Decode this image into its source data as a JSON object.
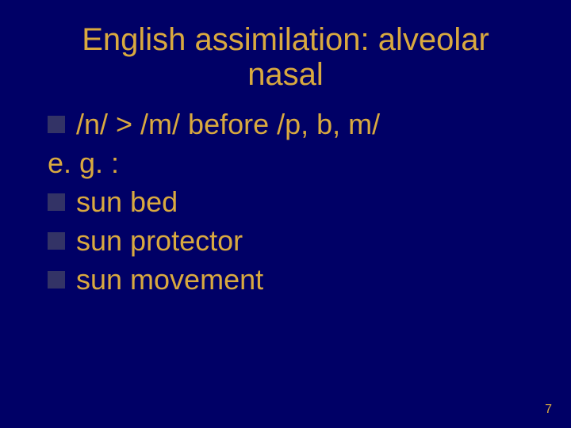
{
  "colors": {
    "background": "#000066",
    "title": "#d9a93f",
    "body_text": "#d9a93f",
    "bullet": "#333366",
    "page_number": "#d9a93f"
  },
  "typography": {
    "title_fontsize": 40,
    "body_fontsize": 36,
    "page_number_fontsize": 16,
    "font_family": "Arial"
  },
  "title": {
    "line1": "English assimilation: alveolar",
    "line2": "nasal"
  },
  "content": {
    "rule": "/n/ > /m/ before /p, b, m/",
    "eg_label": "e. g. :",
    "examples": [
      " sun bed",
      " sun protector",
      " sun movement"
    ]
  },
  "page_number": "7"
}
